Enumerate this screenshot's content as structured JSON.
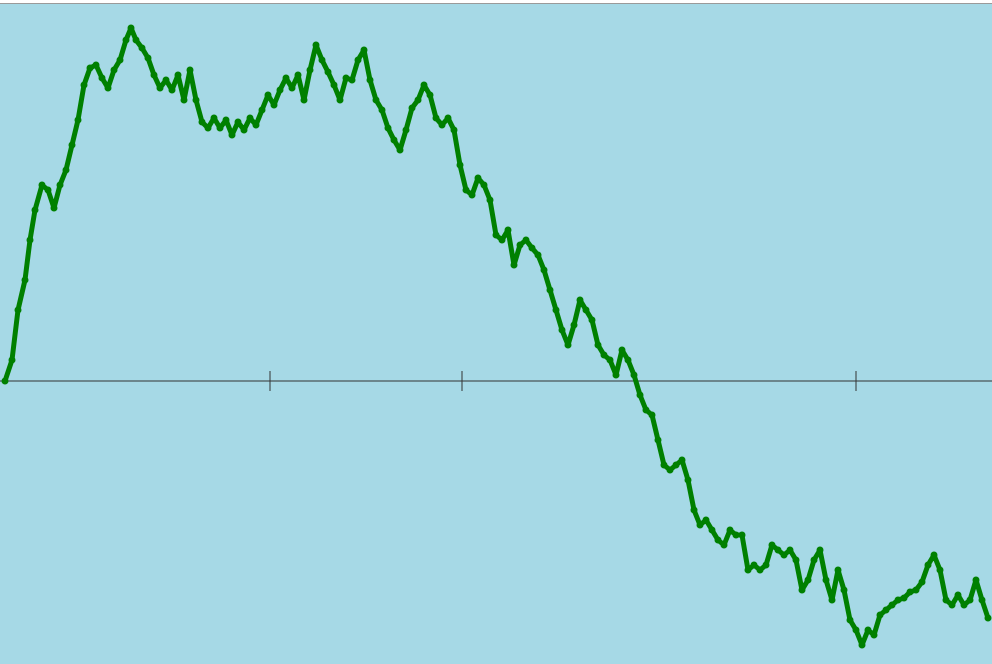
{
  "chart_data": {
    "type": "scatter",
    "background": "#a6d9e6",
    "color": "#008000",
    "connect": true,
    "xlim": [
      0,
      992
    ],
    "ylim": [
      -283,
      381
    ],
    "xticks": [
      270,
      462,
      856
    ],
    "zero_line": true,
    "x": [
      5,
      12,
      18,
      25,
      30,
      35,
      42,
      48,
      54,
      60,
      66,
      72,
      78,
      84,
      90,
      96,
      102,
      108,
      114,
      120,
      126,
      131,
      136,
      142,
      148,
      154,
      160,
      166,
      172,
      178,
      184,
      190,
      196,
      202,
      208,
      214,
      220,
      226,
      232,
      238,
      244,
      250,
      256,
      262,
      268,
      274,
      280,
      286,
      292,
      298,
      304,
      310,
      316,
      322,
      328,
      334,
      340,
      346,
      352,
      358,
      364,
      370,
      376,
      382,
      388,
      394,
      400,
      406,
      412,
      418,
      424,
      430,
      436,
      442,
      448,
      454,
      460,
      466,
      472,
      478,
      484,
      490,
      496,
      502,
      508,
      514,
      520,
      526,
      532,
      538,
      544,
      550,
      556,
      562,
      568,
      574,
      580,
      586,
      592,
      598,
      604,
      610,
      616,
      622,
      628,
      634,
      640,
      646,
      652,
      658,
      664,
      670,
      676,
      682,
      688,
      694,
      700,
      706,
      712,
      718,
      724,
      730,
      736,
      742,
      748,
      754,
      760,
      766,
      772,
      778,
      784,
      790,
      796,
      802,
      808,
      814,
      820,
      826,
      832,
      838,
      844,
      850,
      856,
      862,
      868,
      874,
      880,
      886,
      892,
      898,
      904,
      910,
      916,
      922,
      928,
      934,
      940,
      946,
      952,
      958,
      964,
      970,
      976,
      982,
      988
    ],
    "values": [
      0,
      21,
      71,
      101,
      141,
      171,
      196,
      191,
      173,
      196,
      211,
      236,
      261,
      296,
      313,
      316,
      303,
      293,
      311,
      321,
      341,
      353,
      341,
      333,
      323,
      306,
      293,
      301,
      291,
      306,
      281,
      311,
      281,
      259,
      253,
      263,
      253,
      261,
      246,
      259,
      251,
      263,
      256,
      271,
      286,
      276,
      291,
      303,
      293,
      306,
      281,
      311,
      336,
      321,
      309,
      296,
      281,
      303,
      301,
      321,
      331,
      301,
      281,
      271,
      253,
      241,
      231,
      251,
      273,
      281,
      296,
      286,
      263,
      256,
      263,
      251,
      216,
      191,
      186,
      203,
      196,
      181,
      146,
      141,
      151,
      116,
      136,
      141,
      133,
      126,
      111,
      91,
      71,
      51,
      36,
      56,
      81,
      71,
      61,
      36,
      26,
      21,
      6,
      31,
      21,
      6,
      -14,
      -29,
      -34,
      -59,
      -84,
      -89,
      -84,
      -79,
      -99,
      -129,
      -144,
      -139,
      -149,
      -159,
      -164,
      -149,
      -154,
      -154,
      -189,
      -184,
      -189,
      -184,
      -164,
      -169,
      -174,
      -169,
      -179,
      -209,
      -199,
      -179,
      -169,
      -199,
      -219,
      -189,
      -209,
      -239,
      -249,
      -264,
      -249,
      -254,
      -234,
      -229,
      -224,
      -219,
      -217,
      -211,
      -209,
      -201,
      -184,
      -174,
      -189,
      -219,
      -224,
      -214,
      -224,
      -219,
      -199,
      -219,
      -237
    ]
  }
}
